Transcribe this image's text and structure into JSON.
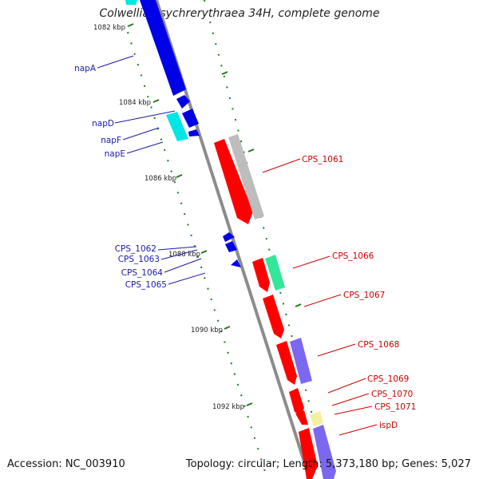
{
  "title": "Colwellia psychrerythraea 34H, complete genome",
  "footer": {
    "accession": "Accession: NC_003910",
    "summary": "Topology: circular; Length: 5,373,180 bp; Genes: 5,027"
  },
  "ticks": [
    "1082 kbp",
    "1084 kbp",
    "1086 kbp",
    "1088 kbp",
    "1090 kbp",
    "1092 kbp"
  ],
  "genes_reverse": [
    "napA",
    "napD",
    "napF",
    "napE",
    "CPS_1062",
    "CPS_1063",
    "CPS_1064",
    "CPS_1065"
  ],
  "genes_forward": [
    "CPS_1061",
    "CPS_1066",
    "CPS_1067",
    "CPS_1068",
    "CPS_1069",
    "CPS_1070",
    "CPS_1071",
    "ispD"
  ],
  "colors": {
    "reverse_cds": "#0000e6",
    "reverse_rna": "#00e6e6",
    "forward_cds": "#ff0000",
    "forward_grey": "#bdbdbd",
    "forward_green": "#33e699",
    "forward_slate": "#7b68ee",
    "forward_yellow": "#f4f0a0",
    "backbone": "#8c8c8c",
    "tick": "#1f7a1f"
  }
}
